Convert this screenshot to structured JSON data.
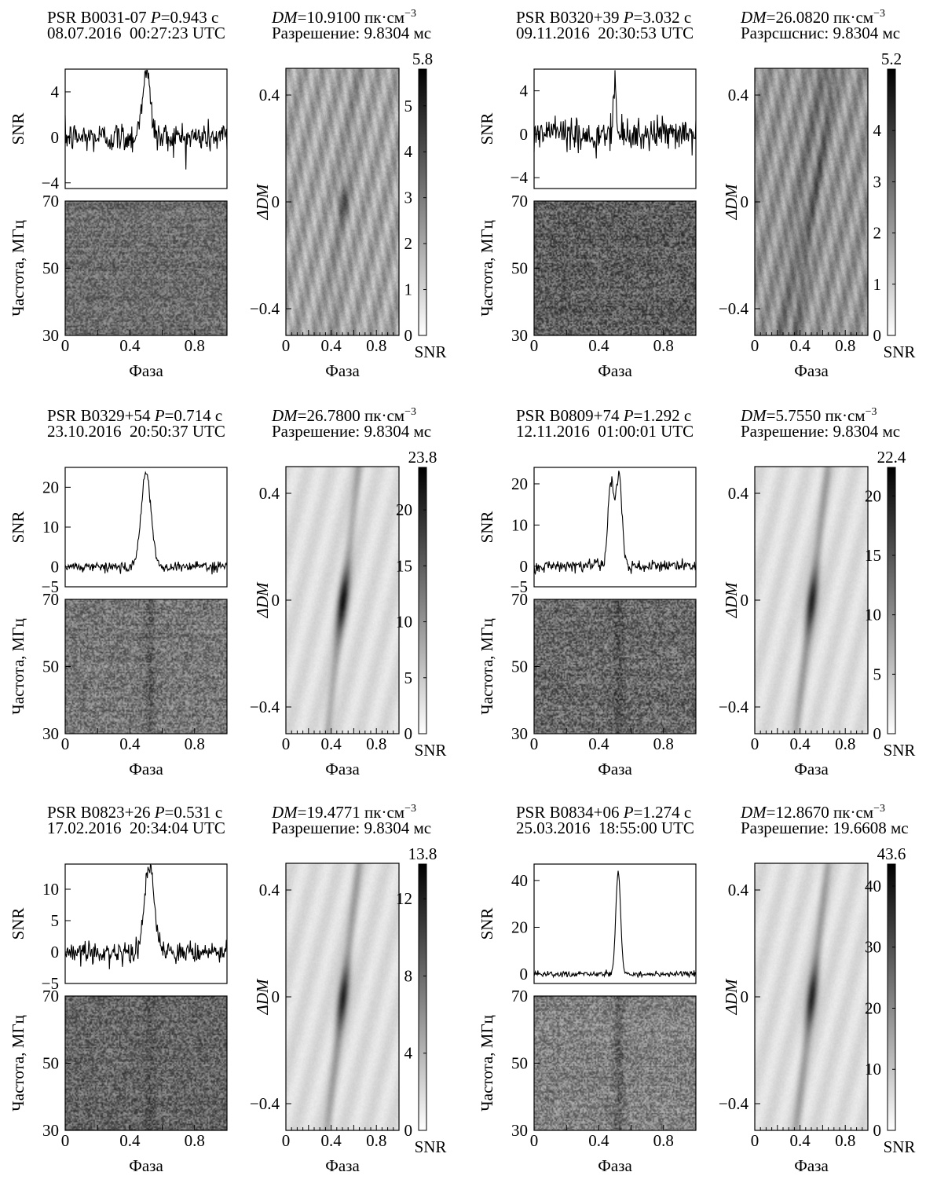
{
  "labels": {
    "phase": "Фаза",
    "snr": "SNR",
    "freq": "Частота, МГц",
    "ddm": "ΔDM",
    "dm_prefix": "DM",
    "dm_unit": "пк·см",
    "dm_exp": "−3",
    "p_prefix": "P",
    "res_unit": "мс",
    "utc": "UTC"
  },
  "panels": [
    {
      "psr": "PSR B0031-07",
      "period": "0.943 с",
      "date": "08.07.2016",
      "time": "00:27:23",
      "dm": "10.9100",
      "res_label": "Разрешение:",
      "res": "9.8304"
    },
    {
      "psr": "PSR B0320+39",
      "period": "3.032 с",
      "date": "09.11.2016",
      "time": "20:30:53",
      "dm": "26.0820",
      "res_label": "Разрсшснис:",
      "res": "9.8304"
    },
    {
      "psr": "PSR B0329+54",
      "period": "0.714 с",
      "date": "23.10.2016",
      "time": "20:50:37",
      "dm": "26.7800",
      "res_label": "Разрешение:",
      "res": "9.8304"
    },
    {
      "psr": "PSR B0809+74",
      "period": "1.292 с",
      "date": "12.11.2016",
      "time": "01:00:01",
      "dm": "5.7550",
      "res_label": "Разрешение:",
      "res": "9.8304"
    },
    {
      "psr": "PSR B0823+26",
      "period": "0.531 с",
      "date": "17.02.2016",
      "time": "20:34:04",
      "dm": "19.4771",
      "res_label": "Разрешепие:",
      "res": "9.8304"
    },
    {
      "psr": "PSR B0834+06",
      "period": "1.274 с",
      "date": "25.03.2016",
      "time": "18:55:00",
      "dm": "12.8670",
      "res_label": "Разрешепие:",
      "res": "19.6608"
    }
  ],
  "chart_data": [
    {
      "pulsar": "PSR B0031-07",
      "type": "line",
      "xlabel": "Фаза",
      "ylabel": "SNR",
      "profile": {
        "xlim": [
          0,
          1
        ],
        "ylim": [
          -4.5,
          6
        ],
        "yticks": [
          -4,
          0,
          4
        ],
        "peak_x": 0.5,
        "peak_snr": 5.8,
        "width": 0.025,
        "noise": 1.0,
        "double": false
      },
      "waterfall": {
        "ylabel": "Частота, МГц",
        "ylim": [
          30,
          70
        ],
        "yticks": [
          30,
          50,
          70
        ],
        "gray": 110,
        "contrast": 45,
        "pulse_strength": 0
      },
      "dm_map": {
        "ylabel": "ΔDM",
        "ylim": [
          -0.5,
          0.5
        ],
        "yticks": [
          -0.4,
          0,
          0.4
        ],
        "colorbar_max": 5.8,
        "colorbar_ticks": [
          0,
          1,
          2,
          3,
          4,
          5
        ],
        "colorbar_label": "SNR",
        "structure": "diagonal streaks with dark spot near phase 0.5"
      }
    },
    {
      "pulsar": "PSR B0320+39",
      "type": "line",
      "xlabel": "Фаза",
      "ylabel": "SNR",
      "profile": {
        "xlim": [
          0,
          1
        ],
        "ylim": [
          -5,
          6
        ],
        "yticks": [
          -4,
          0,
          4
        ],
        "peak_x": 0.5,
        "peak_snr": 5.2,
        "width": 0.008,
        "noise": 1.1,
        "double": false
      },
      "waterfall": {
        "ylabel": "Частота, МГц",
        "ylim": [
          30,
          70
        ],
        "yticks": [
          30,
          50,
          70
        ],
        "gray": 95,
        "contrast": 55,
        "pulse_strength": 0
      },
      "dm_map": {
        "ylabel": "ΔDM",
        "ylim": [
          -0.5,
          0.5
        ],
        "yticks": [
          -0.4,
          0,
          0.4
        ],
        "colorbar_max": 5.2,
        "colorbar_ticks": [
          0,
          1,
          2,
          3,
          4
        ],
        "colorbar_label": "SNR",
        "structure": "diagonal streaks"
      }
    },
    {
      "pulsar": "PSR B0329+54",
      "type": "line",
      "xlabel": "Фаза",
      "ylabel": "SNR",
      "profile": {
        "xlim": [
          0,
          1
        ],
        "ylim": [
          -5,
          25
        ],
        "yticks": [
          -5,
          0,
          10,
          20
        ],
        "peak_x": 0.5,
        "peak_snr": 23.8,
        "width": 0.03,
        "noise": 0.9,
        "double": false
      },
      "waterfall": {
        "ylabel": "Частота, МГц",
        "ylim": [
          30,
          70
        ],
        "yticks": [
          30,
          50,
          70
        ],
        "gray": 120,
        "contrast": 50,
        "pulse_strength": 35
      },
      "dm_map": {
        "ylabel": "ΔDM",
        "ylim": [
          -0.5,
          0.5
        ],
        "yticks": [
          -0.4,
          0,
          0.4
        ],
        "colorbar_max": 23.8,
        "colorbar_ticks": [
          0,
          5,
          10,
          15,
          20
        ],
        "colorbar_label": "SNR",
        "structure": "dark elongated spot at phase 0.5, ΔDM 0"
      }
    },
    {
      "pulsar": "PSR B0809+74",
      "type": "line",
      "xlabel": "Фаза",
      "ylabel": "SNR",
      "profile": {
        "xlim": [
          0,
          1
        ],
        "ylim": [
          -5,
          24
        ],
        "yticks": [
          -5,
          0,
          10,
          20
        ],
        "peak_x": 0.5,
        "peak_snr": 22.4,
        "width": 0.035,
        "noise": 1.0,
        "double": true
      },
      "waterfall": {
        "ylabel": "Частота, МГц",
        "ylim": [
          30,
          70
        ],
        "yticks": [
          30,
          50,
          70
        ],
        "gray": 105,
        "contrast": 55,
        "pulse_strength": 30
      },
      "dm_map": {
        "ylabel": "ΔDM",
        "ylim": [
          -0.5,
          0.5
        ],
        "yticks": [
          -0.4,
          0,
          0.4
        ],
        "colorbar_max": 22.4,
        "colorbar_ticks": [
          0,
          5,
          10,
          15,
          20
        ],
        "colorbar_label": "SNR",
        "structure": "dark elongated spot at phase 0.5, ΔDM 0"
      }
    },
    {
      "pulsar": "PSR B0823+26",
      "type": "line",
      "xlabel": "Фаза",
      "ylabel": "SNR",
      "profile": {
        "xlim": [
          0,
          1
        ],
        "ylim": [
          -5,
          14
        ],
        "yticks": [
          -5,
          0,
          5,
          10
        ],
        "peak_x": 0.52,
        "peak_snr": 13.8,
        "width": 0.03,
        "noise": 1.2,
        "double": false
      },
      "waterfall": {
        "ylabel": "Частота, МГц",
        "ylim": [
          30,
          70
        ],
        "yticks": [
          30,
          50,
          70
        ],
        "gray": 100,
        "contrast": 50,
        "pulse_strength": 18
      },
      "dm_map": {
        "ylabel": "ΔDM",
        "ylim": [
          -0.5,
          0.5
        ],
        "yticks": [
          -0.4,
          0,
          0.4
        ],
        "colorbar_max": 13.8,
        "colorbar_ticks": [
          0,
          4,
          8,
          12
        ],
        "colorbar_label": "SNR",
        "structure": "dark spot at phase 0.5, ΔDM 0"
      }
    },
    {
      "pulsar": "PSR B0834+06",
      "type": "line",
      "xlabel": "Фаза",
      "ylabel": "SNR",
      "profile": {
        "xlim": [
          0,
          1
        ],
        "ylim": [
          -4,
          47
        ],
        "yticks": [
          0,
          20,
          40
        ],
        "peak_x": 0.52,
        "peak_snr": 43.6,
        "width": 0.015,
        "noise": 0.8,
        "double": false
      },
      "waterfall": {
        "ylabel": "Частота, МГц",
        "ylim": [
          30,
          70
        ],
        "yticks": [
          30,
          50,
          70
        ],
        "gray": 130,
        "contrast": 50,
        "pulse_strength": 45
      },
      "dm_map": {
        "ylabel": "ΔDM",
        "ylim": [
          -0.5,
          0.5
        ],
        "yticks": [
          -0.4,
          0,
          0.4
        ],
        "colorbar_max": 43.6,
        "colorbar_ticks": [
          0,
          10,
          20,
          30,
          40
        ],
        "colorbar_label": "SNR",
        "structure": "dark narrow spot at phase 0.52, ΔDM 0"
      }
    }
  ]
}
